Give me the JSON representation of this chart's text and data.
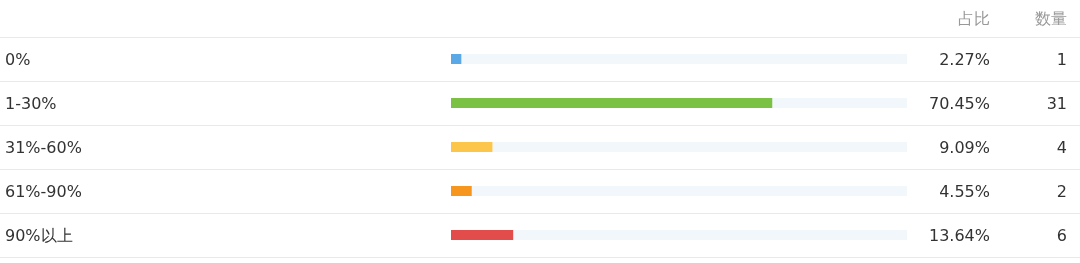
{
  "chart_data": {
    "type": "bar",
    "orientation": "horizontal",
    "categories": [
      "0%",
      "1-30%",
      "31%-60%",
      "61%-90%",
      "90%以上"
    ],
    "values": [
      2.27,
      70.45,
      9.09,
      4.55,
      13.64
    ],
    "colors": [
      "#5aa9e6",
      "#7bc144",
      "#fcc64b",
      "#f7961f",
      "#e24c4a"
    ],
    "value_labels": [
      "2.27%",
      "70.45%",
      "9.09%",
      "4.55%",
      "13.64%"
    ],
    "xlim": [
      0,
      100
    ],
    "tick_labels": "y",
    "annotations": [
      "占比",
      "数量",
      "1",
      "31",
      "4",
      "2",
      "6"
    ]
  }
}
